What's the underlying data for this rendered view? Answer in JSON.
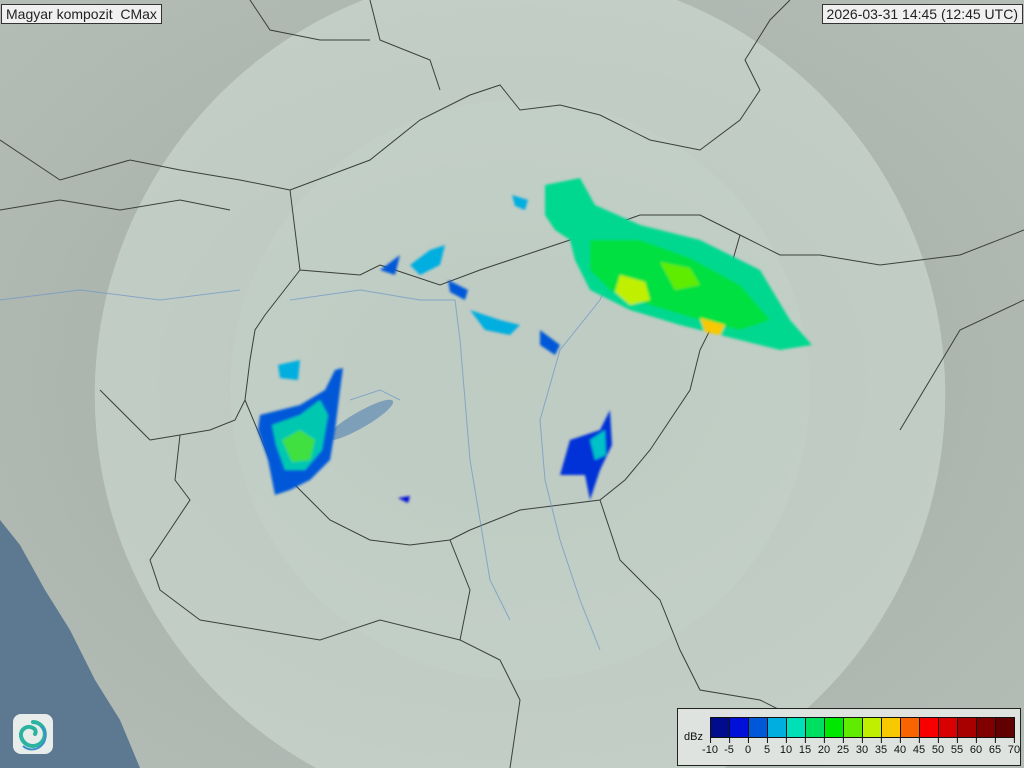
{
  "header": {
    "title": "Magyar kompozit  CMax",
    "timestamp": "2026-03-31 14:45 (12:45 UTC)"
  },
  "legend": {
    "unit": "dBz",
    "ticks": [
      "-10",
      "-5",
      "0",
      "5",
      "10",
      "15",
      "20",
      "25",
      "30",
      "35",
      "40",
      "45",
      "50",
      "55",
      "60",
      "65",
      "70"
    ],
    "colors": [
      "#000c8c",
      "#0010d8",
      "#0058d8",
      "#00aee0",
      "#00e0b8",
      "#00e060",
      "#00e800",
      "#60ec00",
      "#c0f000",
      "#f8c800",
      "#f86400",
      "#f80000",
      "#d80000",
      "#a80000",
      "#800000",
      "#600000"
    ]
  },
  "logo": {
    "icon": "swirl-logo-icon"
  },
  "map": {
    "land_color": "#98a69c",
    "sea_color": "#5d7891",
    "coverage_color": "#d7e3dc"
  }
}
